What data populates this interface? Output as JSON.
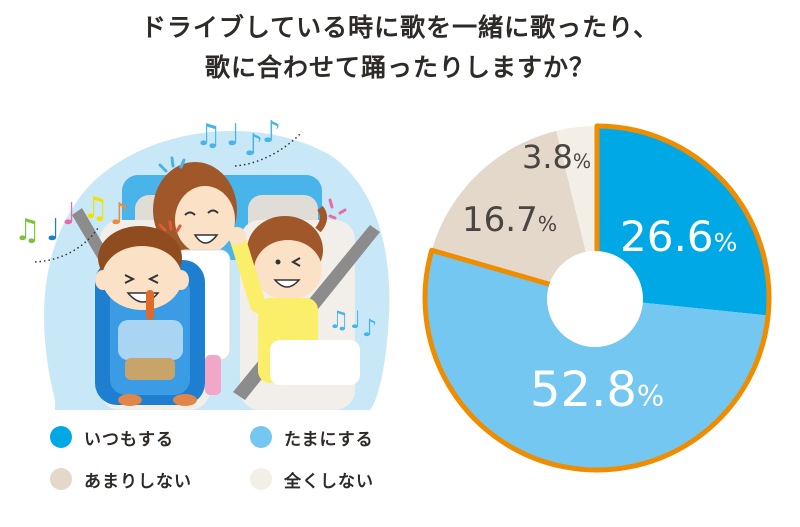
{
  "title": {
    "line1": "ドライブしている時に歌を一緒に歌ったり、",
    "line2": "歌に合わせて踊ったりしますか？"
  },
  "legend": [
    {
      "label": "いつもする",
      "color": "#00a9e6"
    },
    {
      "label": "たまにする",
      "color": "#74c7f0"
    },
    {
      "label": "あまりしない",
      "color": "#e3d8c9"
    },
    {
      "label": "全くしない",
      "color": "#f3eee6"
    }
  ],
  "slice_labels": [
    {
      "num": "26.6",
      "sym": "%",
      "color": "#ffffff"
    },
    {
      "num": "52.8",
      "sym": "%",
      "color": "#ffffff"
    },
    {
      "num": "16.7",
      "sym": "%",
      "color": "#4a4542"
    },
    {
      "num": "3.8",
      "sym": "%",
      "color": "#4a4542"
    }
  ],
  "highlight_color": "#f08c00",
  "chart_data": {
    "type": "pie",
    "title": "ドライブしている時に歌を一緒に歌ったり、歌に合わせて踊ったりしますか？",
    "categories": [
      "いつもする",
      "たまにする",
      "あまりしない",
      "全くしない"
    ],
    "values": [
      26.6,
      52.8,
      16.7,
      3.8
    ],
    "unit": "%",
    "colors": [
      "#00a9e6",
      "#74c7f0",
      "#e3d8c9",
      "#f3eee6"
    ],
    "start_angle": "12 o'clock",
    "direction": "clockwise",
    "donut_hole": true,
    "highlighted_group": [
      "いつもする",
      "たまにする"
    ],
    "legend_position": "bottom-left"
  }
}
